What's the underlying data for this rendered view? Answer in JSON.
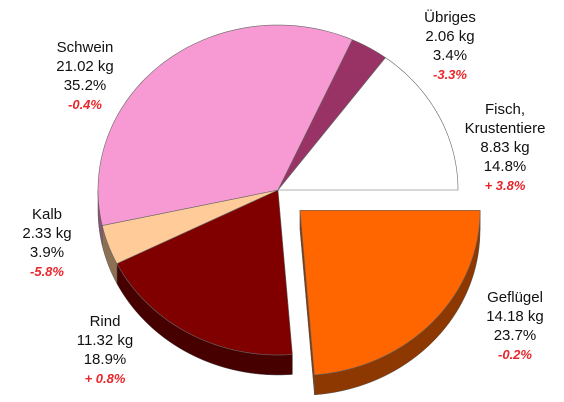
{
  "chart_data": {
    "type": "pie",
    "categories": [
      "Geflügel",
      "Rind",
      "Kalb",
      "Schwein",
      "Übriges",
      "Fisch, Krustentiere"
    ],
    "values": [
      23.7,
      18.9,
      3.9,
      35.2,
      3.4,
      14.8
    ],
    "value_labels": [
      "23.7%",
      "18.9%",
      "3.9%",
      "35.2%",
      "3.4%",
      "14.8%"
    ],
    "weight_labels": [
      "14.18 kg",
      "11.32 kg",
      "2.33 kg",
      "21.02 kg",
      "2.06 kg",
      "8.83 kg"
    ],
    "change_labels": [
      "-0.2%",
      "+ 0.8%",
      "-5.8%",
      "-0.4%",
      "-3.3%",
      "+ 3.8%"
    ],
    "colors": [
      "#ff6600",
      "#800000",
      "#ffcc99",
      "#f79ad3",
      "#993366",
      "#ffffff"
    ],
    "exploded": [
      true,
      false,
      false,
      false,
      false,
      false
    ]
  }
}
